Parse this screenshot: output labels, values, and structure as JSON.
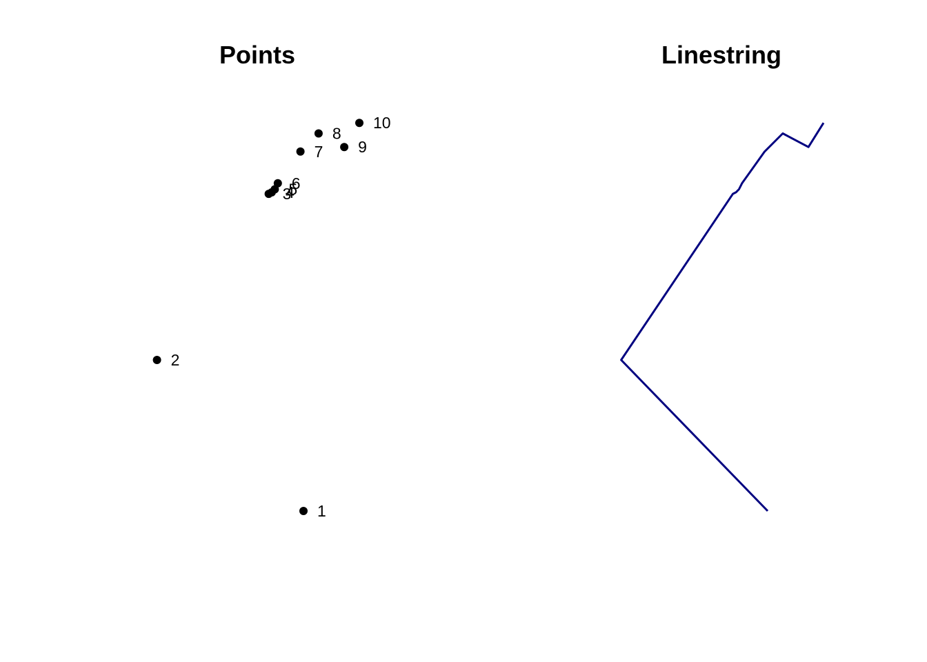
{
  "chart_data": [
    {
      "type": "scatter",
      "title": "Points",
      "xlabel": "",
      "ylabel": "",
      "axes": false,
      "grid": false,
      "marker_color": "#000000",
      "points": [
        {
          "label": "1",
          "x": 0.0,
          "y": 0.0
        },
        {
          "label": "2",
          "x": -0.97,
          "y": 1.0
        },
        {
          "label": "3",
          "x": -0.23,
          "y": 2.1
        },
        {
          "label": "4",
          "x": -0.21,
          "y": 2.11
        },
        {
          "label": "5",
          "x": -0.19,
          "y": 2.13
        },
        {
          "label": "6",
          "x": -0.17,
          "y": 2.17
        },
        {
          "label": "7",
          "x": -0.02,
          "y": 2.38
        },
        {
          "label": "8",
          "x": 0.1,
          "y": 2.5
        },
        {
          "label": "9",
          "x": 0.27,
          "y": 2.41
        },
        {
          "label": "10",
          "x": 0.37,
          "y": 2.57
        }
      ]
    },
    {
      "type": "line",
      "title": "Linestring",
      "xlabel": "",
      "ylabel": "",
      "axes": false,
      "grid": false,
      "line_color": "#000080",
      "x": [
        0.0,
        -0.97,
        -0.23,
        -0.21,
        -0.19,
        -0.17,
        -0.02,
        0.1,
        0.27,
        0.37
      ],
      "y": [
        0.0,
        1.0,
        2.1,
        2.11,
        2.13,
        2.17,
        2.38,
        2.5,
        2.41,
        2.57
      ]
    }
  ]
}
